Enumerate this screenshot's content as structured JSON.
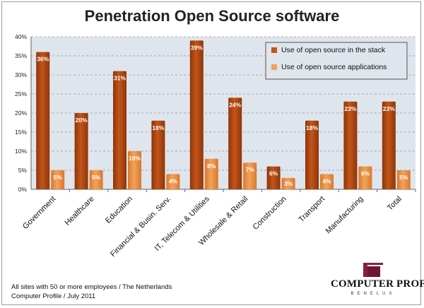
{
  "chart_data": {
    "type": "bar",
    "title": "Penetration Open Source software",
    "categories": [
      "Government",
      "Healthcare",
      "Education",
      "Financial & Busin. Serv.",
      "IT, Telecom & Utilities",
      "Wholesale & Retail",
      "Construction",
      "Transport",
      "Manufacturing",
      "Total"
    ],
    "series": [
      {
        "name": "Use of open source in the stack",
        "values": [
          36,
          20,
          31,
          18,
          39,
          24,
          6,
          18,
          23,
          23
        ],
        "color": "#c2551a"
      },
      {
        "name": "Use of open source applications",
        "values": [
          5,
          5,
          10,
          4,
          8,
          7,
          3,
          4,
          6,
          5
        ],
        "color": "#f2a25a"
      }
    ],
    "ylim": [
      0,
      40
    ],
    "yticks": [
      "0%",
      "5%",
      "10%",
      "15%",
      "20%",
      "25%",
      "30%",
      "35%",
      "40%"
    ],
    "legend": "top-right",
    "grid": true
  },
  "footnote": {
    "line1": "All sites with 50 or more employees / The Netherlands",
    "line2": "Computer Profile / July 2011"
  },
  "logo": {
    "name": "COMPUTER PROFILE",
    "sub": "BENELUX"
  },
  "colors": {
    "plot_bg": "#dfe5ec",
    "grid": "#8f98a3"
  }
}
